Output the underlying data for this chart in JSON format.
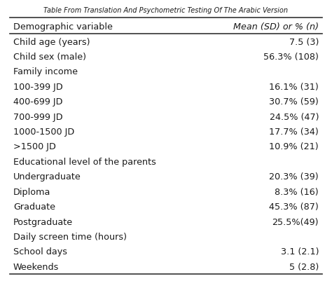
{
  "title": "Table From Translation And Psychometric Testing Of The Arabic Version",
  "col1_header": "Demographic variable",
  "col2_header": "Mean (SD) or % (n)",
  "rows": [
    {
      "left": "Child age (years)",
      "right": "7.5 (3)",
      "section": false
    },
    {
      "left": "Child sex (male)",
      "right": "56.3% (108)",
      "section": false
    },
    {
      "left": "Family income",
      "right": "",
      "section": true
    },
    {
      "left": "100-399 JD",
      "right": "16.1% (31)",
      "section": false
    },
    {
      "left": "400-699 JD",
      "right": "30.7% (59)",
      "section": false
    },
    {
      "left": "700-999 JD",
      "right": "24.5% (47)",
      "section": false
    },
    {
      "left": "1000-1500 JD",
      "right": "17.7% (34)",
      "section": false
    },
    {
      "left": ">1500 JD",
      "right": "10.9% (21)",
      "section": false
    },
    {
      "left": "Educational level of the parents",
      "right": "",
      "section": true
    },
    {
      "left": "Undergraduate",
      "right": "20.3% (39)",
      "section": false
    },
    {
      "left": "Diploma",
      "right": "8.3% (16)",
      "section": false
    },
    {
      "left": "Graduate",
      "right": "45.3% (87)",
      "section": false
    },
    {
      "left": "Postgraduate",
      "right": "25.5%(49)",
      "section": false
    },
    {
      "left": "Daily screen time (hours)",
      "right": "",
      "section": true
    },
    {
      "left": "School days",
      "right": "3.1 (2.1)",
      "section": false
    },
    {
      "left": "Weekends",
      "right": "5 (2.8)",
      "section": false
    }
  ],
  "bg_color": "#ffffff",
  "text_color": "#1a1a1a",
  "line_color": "#333333",
  "title_fontsize": 7.0,
  "header_fontsize": 9.2,
  "body_fontsize": 9.2,
  "fig_width": 4.74,
  "fig_height": 4.02,
  "dpi": 100
}
